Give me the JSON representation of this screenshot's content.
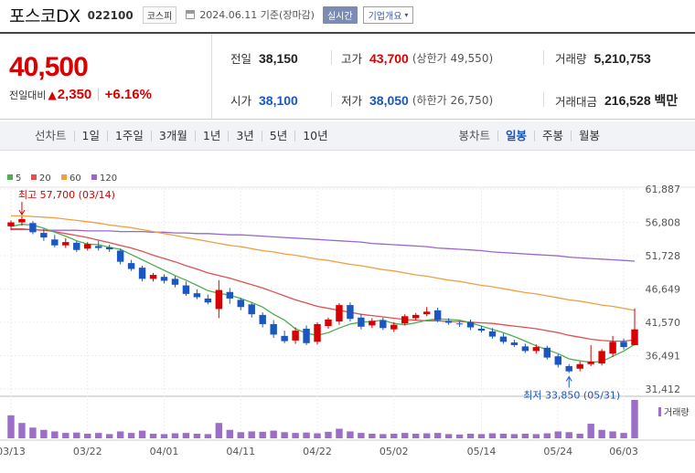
{
  "header": {
    "company": "포스코DX",
    "code": "022100",
    "market": "코스피",
    "date_text": "2024.06.11 기준(장마감)",
    "realtime_label": "실시간",
    "corp_info_label": "기업개요"
  },
  "quote": {
    "price": "40,500",
    "change_label": "전일대비",
    "change_arrow": "▲",
    "change_amount": "2,350",
    "change_rate": "+6.16%"
  },
  "stats": {
    "prev_label": "전일",
    "prev_value": "38,150",
    "high_label": "고가",
    "high_value": "43,700",
    "high_note": "(상한가 49,550)",
    "volume_label": "거래량",
    "volume_value": "5,210,753",
    "open_label": "시가",
    "open_value": "38,100",
    "low_label": "저가",
    "low_value": "38,050",
    "low_note": "(하한가 26,750)",
    "amount_label": "거래대금",
    "amount_value": "216,528 백만"
  },
  "period": {
    "line_label": "선차트",
    "line_items": [
      "1일",
      "1주일",
      "3개월",
      "1년",
      "3년",
      "5년",
      "10년"
    ],
    "candle_label": "봉차트",
    "candle_items": [
      "일봉",
      "주봉",
      "월봉"
    ],
    "candle_selected": "일봉"
  },
  "colors": {
    "up": "#d80000",
    "down": "#1a57c2",
    "ma5": "#4caf50",
    "ma20": "#e05050",
    "ma60": "#f0a040",
    "ma120": "#9966cc"
  },
  "chart_data": {
    "type": "candlestick",
    "legend": [
      "5",
      "20",
      "60",
      "120"
    ],
    "y_ticks": [
      "61,887",
      "56,808",
      "51,728",
      "46,649",
      "41,570",
      "36,491",
      "31,412"
    ],
    "ylim": [
      31412,
      61887
    ],
    "x_ticks": [
      "03/13",
      "03/22",
      "04/01",
      "04/11",
      "04/22",
      "05/02",
      "05/14",
      "05/24",
      "06/03"
    ],
    "high_annotation": "최고 57,700 (03/14)",
    "low_annotation": "최저 33,850 (05/31)",
    "volume_label": "거래량",
    "candles": [
      {
        "o": 56200,
        "c": 56800,
        "h": 57100,
        "l": 55600
      },
      {
        "o": 56800,
        "c": 57300,
        "h": 57700,
        "l": 56300
      },
      {
        "o": 56700,
        "c": 55300,
        "h": 57000,
        "l": 55000
      },
      {
        "o": 55200,
        "c": 54500,
        "h": 55800,
        "l": 54000
      },
      {
        "o": 54200,
        "c": 53300,
        "h": 54900,
        "l": 53000
      },
      {
        "o": 53300,
        "c": 53800,
        "h": 54400,
        "l": 52900
      },
      {
        "o": 53700,
        "c": 52600,
        "h": 54000,
        "l": 52300
      },
      {
        "o": 52800,
        "c": 53500,
        "h": 53800,
        "l": 52500
      },
      {
        "o": 53200,
        "c": 52900,
        "h": 54000,
        "l": 52500
      },
      {
        "o": 53000,
        "c": 52700,
        "h": 53400,
        "l": 52300
      },
      {
        "o": 52500,
        "c": 50800,
        "h": 52800,
        "l": 50400
      },
      {
        "o": 50600,
        "c": 49700,
        "h": 51100,
        "l": 49400
      },
      {
        "o": 49900,
        "c": 48200,
        "h": 50200,
        "l": 47800
      },
      {
        "o": 48200,
        "c": 48800,
        "h": 49100,
        "l": 47800
      },
      {
        "o": 48500,
        "c": 47900,
        "h": 48900,
        "l": 47500
      },
      {
        "o": 48200,
        "c": 47300,
        "h": 48600,
        "l": 46900
      },
      {
        "o": 47200,
        "c": 45900,
        "h": 47800,
        "l": 45600
      },
      {
        "o": 46000,
        "c": 45400,
        "h": 46600,
        "l": 45100
      },
      {
        "o": 45200,
        "c": 44600,
        "h": 45800,
        "l": 44300
      },
      {
        "o": 43600,
        "c": 46500,
        "h": 48000,
        "l": 42200
      },
      {
        "o": 46200,
        "c": 45200,
        "h": 46800,
        "l": 44400
      },
      {
        "o": 45000,
        "c": 43900,
        "h": 45300,
        "l": 43400
      },
      {
        "o": 44300,
        "c": 42800,
        "h": 44600,
        "l": 42300
      },
      {
        "o": 42700,
        "c": 41300,
        "h": 43100,
        "l": 40800
      },
      {
        "o": 41300,
        "c": 39700,
        "h": 41900,
        "l": 39200
      },
      {
        "o": 39500,
        "c": 38700,
        "h": 40300,
        "l": 38400
      },
      {
        "o": 38800,
        "c": 40300,
        "h": 40800,
        "l": 38300
      },
      {
        "o": 40600,
        "c": 38400,
        "h": 41100,
        "l": 38100
      },
      {
        "o": 38600,
        "c": 41300,
        "h": 41600,
        "l": 38200
      },
      {
        "o": 41000,
        "c": 42000,
        "h": 42300,
        "l": 40600
      },
      {
        "o": 41700,
        "c": 44200,
        "h": 44500,
        "l": 41200
      },
      {
        "o": 44200,
        "c": 42100,
        "h": 44600,
        "l": 41700
      },
      {
        "o": 42300,
        "c": 40900,
        "h": 42800,
        "l": 40500
      },
      {
        "o": 41100,
        "c": 41800,
        "h": 42200,
        "l": 40700
      },
      {
        "o": 41900,
        "c": 40700,
        "h": 42300,
        "l": 40400
      },
      {
        "o": 40500,
        "c": 41200,
        "h": 41600,
        "l": 40100
      },
      {
        "o": 41400,
        "c": 42500,
        "h": 42800,
        "l": 41100
      },
      {
        "o": 42200,
        "c": 42700,
        "h": 43000,
        "l": 41900
      },
      {
        "o": 42800,
        "c": 43200,
        "h": 43900,
        "l": 42500
      },
      {
        "o": 43400,
        "c": 41900,
        "h": 43800,
        "l": 41600
      },
      {
        "o": 41800,
        "c": 41500,
        "h": 42200,
        "l": 41200
      },
      {
        "o": 41400,
        "c": 41300,
        "h": 41800,
        "l": 40900
      },
      {
        "o": 41600,
        "c": 40800,
        "h": 42000,
        "l": 40400
      },
      {
        "o": 40600,
        "c": 40300,
        "h": 41000,
        "l": 40000
      },
      {
        "o": 40200,
        "c": 39400,
        "h": 40700,
        "l": 39100
      },
      {
        "o": 39400,
        "c": 38600,
        "h": 39900,
        "l": 38300
      },
      {
        "o": 38500,
        "c": 38100,
        "h": 38900,
        "l": 37800
      },
      {
        "o": 37900,
        "c": 37200,
        "h": 38300,
        "l": 36900
      },
      {
        "o": 37200,
        "c": 37800,
        "h": 38200,
        "l": 36800
      },
      {
        "o": 37700,
        "c": 36200,
        "h": 38000,
        "l": 35900
      },
      {
        "o": 36400,
        "c": 35100,
        "h": 36700,
        "l": 34700
      },
      {
        "o": 34900,
        "c": 34100,
        "h": 35200,
        "l": 33850
      },
      {
        "o": 34500,
        "c": 35200,
        "h": 35600,
        "l": 34100
      },
      {
        "o": 35200,
        "c": 35600,
        "h": 38100,
        "l": 34900
      },
      {
        "o": 35300,
        "c": 37200,
        "h": 37500,
        "l": 35000
      },
      {
        "o": 36800,
        "c": 38600,
        "h": 39500,
        "l": 36300
      },
      {
        "o": 38600,
        "c": 37800,
        "h": 39100,
        "l": 37400
      },
      {
        "o": 38100,
        "c": 40500,
        "h": 43700,
        "l": 38050
      }
    ],
    "volume": [
      60,
      40,
      28,
      22,
      18,
      14,
      15,
      12,
      14,
      11,
      18,
      14,
      20,
      12,
      11,
      13,
      14,
      12,
      11,
      40,
      22,
      16,
      18,
      17,
      20,
      16,
      14,
      15,
      13,
      17,
      25,
      18,
      14,
      12,
      11,
      12,
      14,
      12,
      13,
      14,
      11,
      10,
      12,
      11,
      13,
      12,
      11,
      12,
      11,
      13,
      18,
      16,
      12,
      38,
      22,
      18,
      14,
      100
    ],
    "ma5": [
      56200,
      56500,
      56400,
      55900,
      55300,
      54700,
      54000,
      53500,
      53400,
      53000,
      52700,
      51900,
      51100,
      50300,
      49500,
      48700,
      48000,
      47200,
      46400,
      46000,
      45700,
      45200,
      44600,
      43900,
      42800,
      41900,
      40600,
      39900,
      39600,
      40000,
      40700,
      41300,
      41600,
      41700,
      41900,
      41400,
      41200,
      41500,
      41900,
      42100,
      42000,
      41900,
      41500,
      41000,
      40500,
      40000,
      39400,
      38700,
      38000,
      37400,
      36800,
      36000,
      35700,
      35500,
      35600,
      36400,
      37200,
      38200
    ],
    "ma20": [
      55800,
      55800,
      55700,
      55600,
      55400,
      55100,
      54800,
      54500,
      54100,
      53700,
      53300,
      52900,
      52400,
      51800,
      51300,
      50800,
      50200,
      49700,
      49100,
      48700,
      48300,
      47800,
      47300,
      46800,
      46200,
      45600,
      45000,
      44500,
      44000,
      43700,
      43400,
      43100,
      42800,
      42600,
      42400,
      42200,
      42000,
      41900,
      41800,
      41800,
      41700,
      41700,
      41600,
      41500,
      41400,
      41200,
      41000,
      40800,
      40600,
      40300,
      40000,
      39600,
      39300,
      39000,
      38800,
      38700,
      38700,
      38900
    ],
    "ma60": [
      57800,
      57800,
      57700,
      57600,
      57500,
      57300,
      57100,
      56900,
      56700,
      56400,
      56200,
      56000,
      55700,
      55400,
      55100,
      54800,
      54500,
      54200,
      53900,
      53600,
      53300,
      53100,
      52800,
      52500,
      52300,
      52000,
      51800,
      51500,
      51200,
      51000,
      50700,
      50400,
      50200,
      49900,
      49600,
      49400,
      49100,
      48800,
      48600,
      48300,
      48000,
      47800,
      47500,
      47200,
      47000,
      46700,
      46400,
      46100,
      45900,
      45600,
      45300,
      45000,
      44800,
      44500,
      44200,
      44000,
      43700,
      43400
    ],
    "ma120": [
      55700,
      55700,
      55700,
      55600,
      55600,
      55600,
      55600,
      55500,
      55500,
      55500,
      55400,
      55400,
      55400,
      55300,
      55300,
      55200,
      55200,
      55100,
      55100,
      55000,
      54900,
      54900,
      54800,
      54700,
      54600,
      54500,
      54400,
      54300,
      54200,
      54100,
      54000,
      53900,
      53800,
      53600,
      53500,
      53400,
      53300,
      53200,
      53100,
      52900,
      52800,
      52700,
      52600,
      52500,
      52300,
      52200,
      52100,
      52000,
      51900,
      51800,
      51700,
      51500,
      51400,
      51300,
      51200,
      51100,
      51000,
      50900
    ]
  }
}
